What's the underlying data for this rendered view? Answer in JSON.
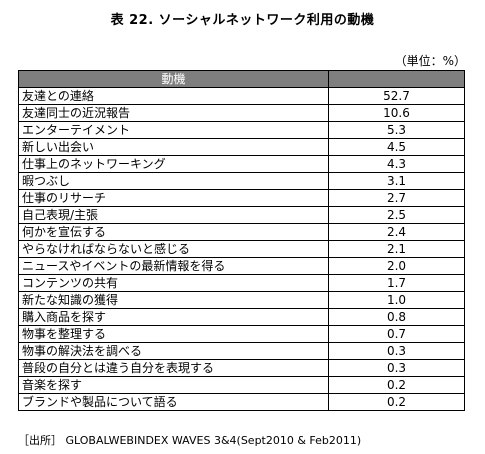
{
  "title": "表 22.  ソーシャルネットワーク利用の動機",
  "unit_note": "（単位：%）",
  "table": {
    "header": "動機",
    "rows": [
      {
        "label": "友達との連絡",
        "value": "52.7"
      },
      {
        "label": "友達同士の近況報告",
        "value": "10.6"
      },
      {
        "label": "エンターテイメント",
        "value": "5.3"
      },
      {
        "label": "新しい出会い",
        "value": "4.5"
      },
      {
        "label": "仕事上のネットワーキング",
        "value": "4.3"
      },
      {
        "label": "暇つぶし",
        "value": "3.1"
      },
      {
        "label": "仕事のリサーチ",
        "value": "2.7"
      },
      {
        "label": "自己表現/主張",
        "value": "2.5"
      },
      {
        "label": "何かを宣伝する",
        "value": "2.4"
      },
      {
        "label": "やらなければならないと感じる",
        "value": "2.1"
      },
      {
        "label": "ニュースやイベントの最新情報を得る",
        "value": "2.0"
      },
      {
        "label": "コンテンツの共有",
        "value": "1.7"
      },
      {
        "label": "新たな知識の獲得",
        "value": "1.0"
      },
      {
        "label": "購入商品を探す",
        "value": "0.8"
      },
      {
        "label": "物事を整理する",
        "value": "0.7"
      },
      {
        "label": "物事の解決法を調べる",
        "value": "0.3"
      },
      {
        "label": "普段の自分とは違う自分を表現する",
        "value": "0.3"
      },
      {
        "label": "音楽を探す",
        "value": "0.2"
      },
      {
        "label": "ブランドや製品について語る",
        "value": "0.2"
      }
    ]
  },
  "source": "［出所］ GLOBALWEBINDEX WAVES 3&4(Sept2010 & Feb2011)"
}
